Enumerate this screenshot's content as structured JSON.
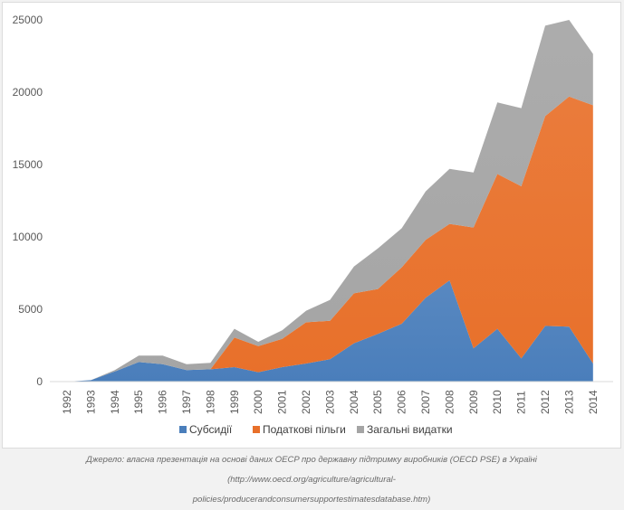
{
  "chart_data": {
    "type": "area",
    "stacked": true,
    "title": "",
    "xlabel": "",
    "ylabel": "",
    "ylim": [
      0,
      25000
    ],
    "yticks": [
      "0",
      "5000",
      "10000",
      "15000",
      "20000",
      "25000"
    ],
    "categories": [
      "1992",
      "1993",
      "1994",
      "1995",
      "1996",
      "1997",
      "1998",
      "1999",
      "2000",
      "2001",
      "2002",
      "2003",
      "2004",
      "2005",
      "2006",
      "2007",
      "2008",
      "2009",
      "2010",
      "2011",
      "2012",
      "2013",
      "2014"
    ],
    "series": [
      {
        "name": "Субсидії",
        "color": "#4a7ebb",
        "values": [
          0,
          100,
          700,
          1350,
          1200,
          800,
          850,
          1000,
          650,
          1000,
          1250,
          1550,
          2650,
          3300,
          4000,
          5800,
          7000,
          2300,
          3650,
          1600,
          3850,
          3800,
          1250
        ]
      },
      {
        "name": "Податкові пільги",
        "color": "#e8702a",
        "values": [
          0,
          0,
          0,
          0,
          0,
          0,
          0,
          2050,
          1800,
          1950,
          2850,
          2650,
          3450,
          3100,
          3900,
          4000,
          3900,
          8350,
          10700,
          11900,
          14500,
          15900,
          17850
        ]
      },
      {
        "name": "Загальні видатки",
        "color": "#a5a5a5",
        "values": [
          0,
          0,
          100,
          450,
          600,
          400,
          450,
          600,
          300,
          600,
          800,
          1450,
          1850,
          2800,
          2700,
          3350,
          3800,
          3800,
          4950,
          5400,
          6250,
          5300,
          3550
        ]
      }
    ],
    "legend_position": "bottom",
    "grid": false
  },
  "caption": {
    "prefix": "Джерело: власна презентація на основі даних OECP про державну підтримку виробників (OECD PSE) в Україні (",
    "link_line1": "http://www.oecd.org/agriculture/agricultural-",
    "link_line2": "policies/producerandconsumersupportestimatesdatabase.htm",
    "suffix": ")"
  }
}
